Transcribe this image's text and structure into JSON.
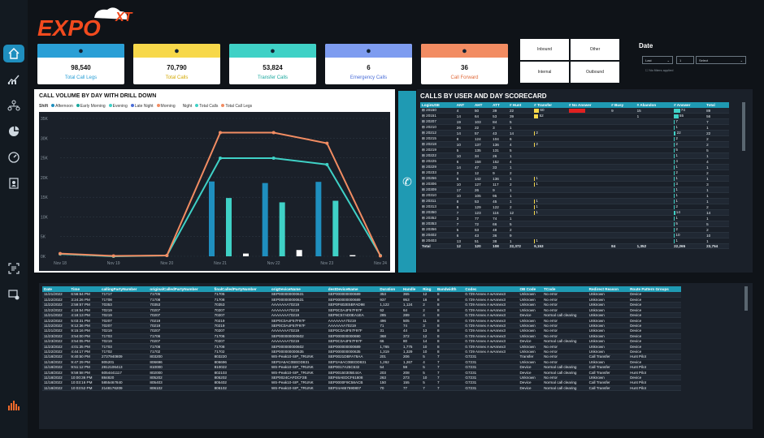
{
  "brand": {
    "logo_text": "EXPO",
    "logo_superscript": "XT"
  },
  "sidebar": {
    "items": [
      {
        "name": "home-icon"
      },
      {
        "name": "analytics-icon"
      },
      {
        "name": "network-icon"
      },
      {
        "name": "pie-chart-icon"
      },
      {
        "name": "gauge-icon"
      },
      {
        "name": "contacts-icon"
      },
      {
        "name": "report-icon"
      },
      {
        "name": "device-settings-icon"
      }
    ]
  },
  "kpis": [
    {
      "value": "98,540",
      "label": "Total Call Legs",
      "color": "#2a9fd6",
      "icon": "phone-icon",
      "labelColor": "#2a9fd6"
    },
    {
      "value": "70,790",
      "label": "Total Calls",
      "color": "#f7d84a",
      "icon": "phone-ring-icon",
      "labelColor": "#d4a800"
    },
    {
      "value": "53,824",
      "label": "Transfer Calls",
      "color": "#3fd1c6",
      "icon": "transfer-icon",
      "labelColor": "#1aa89e"
    },
    {
      "value": "6",
      "label": "Emergency Calls",
      "color": "#7e9cf0",
      "icon": "users-icon",
      "labelColor": "#4a6ed8"
    },
    {
      "value": "36",
      "label": "Call Forward",
      "color": "#f28c62",
      "icon": "forward-icon",
      "labelColor": "#e06a3a"
    }
  ],
  "direction": {
    "inbound": "Inbound",
    "other": "Other",
    "internal": "Internal",
    "outbound": "Outbound"
  },
  "date": {
    "title": "Date",
    "unit": "Last",
    "count": "1",
    "select": "Select",
    "note": "No filters applied"
  },
  "chart": {
    "title": "CALL VOLUME BY DAY WITH DRILL DOWN",
    "shift_label": "Shift"
  },
  "chart_data": {
    "type": "bar",
    "categories": [
      "Nov 18",
      "Nov 19",
      "Nov 20",
      "Nov 21",
      "Nov 22",
      "Nov 23",
      "Nov 24"
    ],
    "ylim": [
      0,
      35000
    ],
    "yticks": [
      "0K",
      "5K",
      "10K",
      "15K",
      "20K",
      "25K",
      "30K",
      "35K"
    ],
    "series": [
      {
        "name": "Afternoon",
        "color": "#1f8fbf",
        "values": [
          0,
          0,
          0,
          19000,
          18600,
          18900,
          0
        ]
      },
      {
        "name": "Early Morning",
        "color": "#1aa89e",
        "values": [
          0,
          0,
          0,
          0,
          0,
          0,
          0
        ]
      },
      {
        "name": "Evening",
        "color": "#3fd1c6",
        "values": [
          0,
          0,
          0,
          14800,
          13700,
          14100,
          0
        ]
      },
      {
        "name": "Late Night",
        "color": "#4a6ed8",
        "values": [
          0,
          0,
          0,
          0,
          0,
          0,
          0
        ]
      },
      {
        "name": "Morning",
        "color": "#f28c62",
        "values": [
          0,
          0,
          0,
          0,
          0,
          0,
          0
        ]
      },
      {
        "name": "Night",
        "color": "#ffffff",
        "values": [
          0,
          0,
          100,
          700,
          1600,
          300,
          0
        ]
      },
      {
        "name": "Total Calls",
        "color": "#3fd1c6",
        "values": [
          600,
          0,
          200,
          24900,
          24900,
          23300,
          200
        ]
      },
      {
        "name": "Total Call Legs",
        "color": "#f28c62",
        "values": [
          700,
          100,
          200,
          31400,
          31400,
          28700,
          100
        ]
      }
    ]
  },
  "scorecard": {
    "title": "CALLS BY USER AND DAY SCORECARD",
    "columns": [
      "LoginUSE",
      "ANT",
      "AHT",
      "ATT",
      "# Hunt",
      "# Transfer",
      "# No Answer",
      "# Busy",
      "# Abandon",
      "# Answer",
      "Total"
    ],
    "rows": [
      [
        "20150",
        "4",
        "50",
        "39",
        "22",
        "60",
        "",
        "9",
        "15",
        "74",
        "89"
      ],
      [
        "20151",
        "14",
        "64",
        "53",
        "39",
        "52",
        "",
        "",
        "1",
        "55",
        "56"
      ],
      [
        "20207",
        "19",
        "103",
        "84",
        "5",
        "",
        "",
        "",
        "",
        "7",
        "7"
      ],
      [
        "20210",
        "26",
        "22",
        "3",
        "1",
        "",
        "",
        "",
        "",
        "1",
        "1"
      ],
      [
        "20212",
        "14",
        "57",
        "43",
        "14",
        "2",
        "",
        "",
        "",
        "22",
        "22"
      ],
      [
        "20215",
        "8",
        "124",
        "104",
        "6",
        "",
        "",
        "",
        "",
        "2",
        "2"
      ],
      [
        "20218",
        "10",
        "137",
        "136",
        "4",
        "2",
        "",
        "",
        "",
        "2",
        "2"
      ],
      [
        "20219",
        "5",
        "135",
        "131",
        "5",
        "",
        "",
        "",
        "",
        "5",
        "5"
      ],
      [
        "20222",
        "10",
        "34",
        "26",
        "1",
        "",
        "",
        "",
        "",
        "1",
        "1"
      ],
      [
        "20225",
        "6",
        "158",
        "152",
        "4",
        "",
        "",
        "",
        "",
        "4",
        "4"
      ],
      [
        "20229",
        "14",
        "47",
        "33",
        "1",
        "",
        "",
        "",
        "",
        "1",
        "1"
      ],
      [
        "20233",
        "3",
        "12",
        "9",
        "2",
        "",
        "",
        "",
        "",
        "2",
        "2"
      ],
      [
        "20256",
        "6",
        "142",
        "136",
        "1",
        "1",
        "",
        "",
        "",
        "1",
        "1"
      ],
      [
        "20306",
        "10",
        "127",
        "117",
        "2",
        "1",
        "",
        "",
        "",
        "3",
        "3"
      ],
      [
        "20309",
        "17",
        "26",
        "9",
        "1",
        "",
        "",
        "",
        "",
        "1",
        "1"
      ],
      [
        "20310",
        "10",
        "105",
        "95",
        "1",
        "",
        "",
        "",
        "",
        "1",
        "1"
      ],
      [
        "20311",
        "8",
        "53",
        "45",
        "1",
        "1",
        "",
        "",
        "",
        "1",
        "1"
      ],
      [
        "20313",
        "8",
        "129",
        "122",
        "2",
        "1",
        "",
        "",
        "",
        "2",
        "2"
      ],
      [
        "20350",
        "7",
        "123",
        "116",
        "12",
        "1",
        "",
        "",
        "",
        "14",
        "14"
      ],
      [
        "20352",
        "3",
        "77",
        "74",
        "1",
        "",
        "",
        "",
        "",
        "1",
        "1"
      ],
      [
        "20353",
        "7",
        "72",
        "66",
        "5",
        "",
        "",
        "",
        "",
        "5",
        "5"
      ],
      [
        "20356",
        "5",
        "53",
        "48",
        "2",
        "",
        "",
        "",
        "",
        "2",
        "2"
      ],
      [
        "20402",
        "6",
        "43",
        "36",
        "9",
        "",
        "",
        "",
        "",
        "10",
        "10"
      ],
      [
        "20403",
        "13",
        "51",
        "38",
        "1",
        "1",
        "",
        "",
        "",
        "1",
        "1"
      ]
    ],
    "total": [
      "Total",
      "12",
      "120",
      "108",
      "22,372",
      "9,153",
      "",
      "84",
      "1,352",
      "22,265",
      "23,754"
    ]
  },
  "calls_table": {
    "columns": [
      "Date",
      "Time",
      "callingPartyNumber",
      "originalCalledPartyNumber",
      "finalCalledPartyNumber",
      "origDeviceName",
      "destDeviceName",
      "Duration",
      "Handle",
      "Ring",
      "Bandwidth",
      "Codec",
      "OB Code",
      "TCode",
      "Redirect Reason",
      "Route Pattern Groups"
    ],
    "rows": [
      [
        "11/21/2022",
        "6:56:54 PM",
        "71717",
        "71705",
        "71705",
        "SEP000000000631",
        "SEP000000000689",
        "353",
        "365",
        "12",
        "8",
        "0.729 Annex A wAnnex3",
        "Unknown",
        "No error",
        "Unknown",
        "Device"
      ],
      [
        "11/22/2022",
        "3:24:26 PM",
        "71708",
        "71708",
        "71708",
        "SEP000000000631",
        "SEP000000000689",
        "937",
        "953",
        "16",
        "8",
        "0.729 Annex A wAnnex3",
        "Unknown",
        "No error",
        "Unknown",
        "Device"
      ],
      [
        "11/22/2022",
        "2:59:57 PM",
        "70353",
        "70353",
        "70353",
        "AAAAAAA70219",
        "SEP0F602E5BFAD98",
        "1,122",
        "1,124",
        "2",
        "8",
        "0.729 Annex A wAnnex3",
        "Unknown",
        "No error",
        "Unknown",
        "Device"
      ],
      [
        "11/22/2022",
        "4:16:54 PM",
        "70219",
        "70207",
        "70207",
        "AAAAAAA70219",
        "SEP0C0A4F57F97F",
        "62",
        "64",
        "2",
        "8",
        "0.729 Annex A wAnnex3",
        "Unknown",
        "No error",
        "Unknown",
        "Device"
      ],
      [
        "11/21/2022",
        "4:18:13 PM",
        "70219",
        "70207",
        "70207",
        "AAAAAAA70219",
        "SEP9C57AD0EA1EA",
        "285",
        "289",
        "4",
        "8",
        "0.729 Annex A wAnnex3",
        "Device",
        "Normal call clearing",
        "Unknown",
        "Device"
      ],
      [
        "11/22/2022",
        "5:03:31 PM",
        "70207",
        "70219",
        "70219",
        "SEP0C0A4F57F97F",
        "AAAAAAA70219",
        "496",
        "505",
        "11",
        "8",
        "0.729 Annex A wAnnex3",
        "Unknown",
        "No error",
        "Unknown",
        "Device"
      ],
      [
        "11/22/2022",
        "9:12:36 PM",
        "70207",
        "70219",
        "70219",
        "SEP0C0A4F57F97F",
        "AAAAAAA70219",
        "71",
        "74",
        "3",
        "8",
        "0.729 Annex A wAnnex3",
        "Unknown",
        "No error",
        "Unknown",
        "Device"
      ],
      [
        "11/21/2022",
        "9:15:16 PM",
        "70219",
        "70207",
        "70207",
        "AAAAAAA70219",
        "SEP0C0A4F57F97F",
        "31",
        "44",
        "13",
        "8",
        "0.729 Annex A wAnnex3",
        "Unknown",
        "No error",
        "Unknown",
        "Device"
      ],
      [
        "11/23/2022",
        "3:54:00 PM",
        "71703",
        "71706",
        "71706",
        "SEP000000000602",
        "SEP000000000690",
        "368",
        "372",
        "12",
        "8",
        "0.729 Annex A wAnnex3",
        "Unknown",
        "No error",
        "Unknown",
        "Device"
      ],
      [
        "11/23/2022",
        "3:54:05 PM",
        "70219",
        "70207",
        "70207",
        "AAAAAAA70219",
        "SEP0C0A4F57F97F",
        "66",
        "80",
        "14",
        "8",
        "0.729 Annex A wAnnex3",
        "Device",
        "Normal call clearing",
        "Unknown",
        "Device"
      ],
      [
        "11/23/2022",
        "4:01:35 PM",
        "71703",
        "71708",
        "71708",
        "SEP000000000602",
        "SEP000000000689",
        "1,765",
        "1,775",
        "10",
        "8",
        "0.729 Annex A wAnnex3",
        "Unknown",
        "No error",
        "Unknown",
        "Device"
      ],
      [
        "11/22/2022",
        "4:44:17 PM",
        "71702",
        "71702",
        "71702",
        "SEP000000000635",
        "SEP000000000635",
        "1,319",
        "1,329",
        "10",
        "8",
        "0.729 Annex A wAnnex3",
        "Unknown",
        "No error",
        "Unknown",
        "Device"
      ],
      [
        "11/18/2022",
        "9:40:50 PM",
        "2737940809",
        "803200",
        "803220",
        "WS-Peak10-SIP_TRUNK",
        "SEP0021DBFA78AA",
        "201",
        "206",
        "5",
        "7",
        "G7231",
        "Transfer",
        "No error",
        "Call Transfer",
        "Hunt Pilot"
      ],
      [
        "11/18/2022",
        "9:47:29 PM",
        "805201",
        "806696",
        "806696",
        "SEP2A6AC0BEDD831",
        "SEP2A6AC0BEDD831",
        "1,262",
        "1,267",
        "4",
        "7",
        "G7231",
        "Unknown",
        "No error",
        "Unknown",
        "Device"
      ],
      [
        "11/18/2022",
        "9:51:12 PM",
        "2812106413",
        "810000",
        "810022",
        "WS-Peak10-SIP_TRUNK",
        "SEP0017A25C632",
        "54",
        "59",
        "5",
        "7",
        "G7231",
        "Device",
        "Normal call clearing",
        "Call Transfer",
        "Hunt Pilot"
      ],
      [
        "11/18/2022",
        "9:59:58 PM",
        "6054441117",
        "802000",
        "802103",
        "WS-Peak10-SIP_TRUNK",
        "SEP00150305E44A",
        "203",
        "208",
        "5",
        "7",
        "G7231",
        "Device",
        "Normal call clearing",
        "Call Transfer",
        "Hunt Pilot"
      ],
      [
        "11/18/2022",
        "10:00:36 PM",
        "884820",
        "805202",
        "805202",
        "SEP0024CAFDCF2B",
        "SEP46AEDCF61808",
        "263",
        "273",
        "10",
        "7",
        "G7231",
        "Unknown",
        "No error",
        "Unknown",
        "Device"
      ],
      [
        "11/18/2022",
        "10:03:16 PM",
        "5855467840",
        "805403",
        "805402",
        "WS-Peak10-SIP_TRUNK",
        "SEP0000F9C58ACB",
        "150",
        "155",
        "5",
        "7",
        "G7231",
        "Device",
        "Normal call clearing",
        "Call Transfer",
        "Hunt Pilot"
      ],
      [
        "11/18/2022",
        "10:03:52 PM",
        "2148176209",
        "806102",
        "806102",
        "WS-Peak10-SIP_TRUNK",
        "SEP24A657590807",
        "70",
        "77",
        "7",
        "7",
        "G7231",
        "Device",
        "Normal call clearing",
        "Call Transfer",
        "Hunt Pilot"
      ]
    ]
  }
}
